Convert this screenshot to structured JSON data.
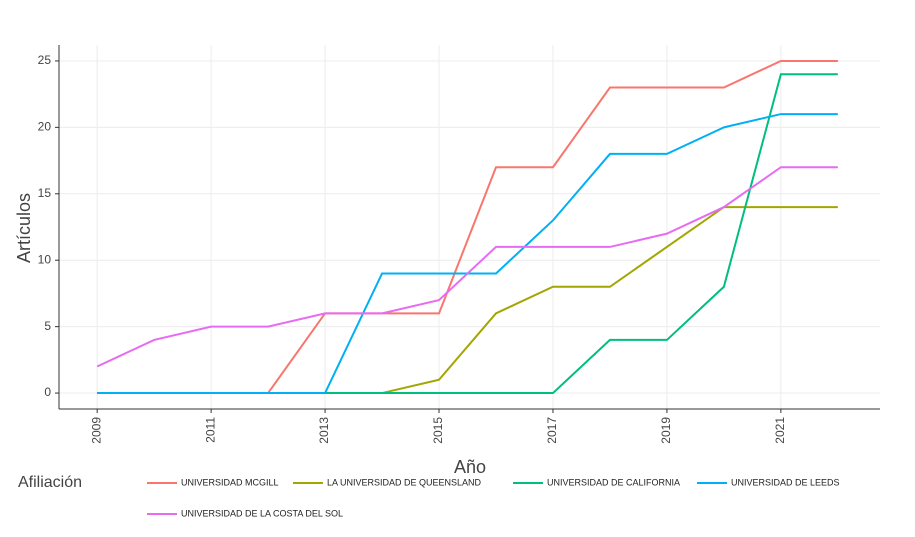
{
  "chart_data": {
    "type": "line",
    "x_label": "Año",
    "y_label": "Artículos",
    "legend_title": "Afiliación",
    "x": [
      2009,
      2010,
      2011,
      2012,
      2013,
      2014,
      2015,
      2016,
      2017,
      2018,
      2019,
      2020,
      2021,
      2022
    ],
    "series": [
      {
        "name": "UNIVERSIDAD MCGILL",
        "color": "#F8766D",
        "values": [
          0,
          0,
          0,
          0,
          6,
          6,
          6,
          17,
          17,
          23,
          23,
          23,
          25,
          25
        ]
      },
      {
        "name": "LA UNIVERSIDAD DE QUEENSLAND",
        "color": "#A3A500",
        "values": [
          0,
          0,
          0,
          0,
          0,
          0,
          1,
          6,
          8,
          8,
          11,
          14,
          14,
          14
        ]
      },
      {
        "name": "UNIVERSIDAD DE CALIFORNIA",
        "color": "#00BF7D",
        "values": [
          0,
          0,
          0,
          0,
          0,
          0,
          0,
          0,
          0,
          4,
          4,
          8,
          24,
          24
        ]
      },
      {
        "name": "UNIVERSIDAD DE LEEDS",
        "color": "#00B0F6",
        "values": [
          0,
          0,
          0,
          0,
          0,
          9,
          9,
          9,
          13,
          18,
          18,
          20,
          21,
          21
        ]
      },
      {
        "name": "UNIVERSIDAD DE LA COSTA DEL SOL",
        "color": "#E76BF3",
        "values": [
          2,
          4,
          5,
          5,
          6,
          6,
          7,
          11,
          11,
          11,
          12,
          14,
          17,
          17
        ]
      }
    ],
    "xlim": [
      2008.33,
      2022.74
    ],
    "xticks": [
      2009,
      2011,
      2013,
      2015,
      2017,
      2019,
      2021
    ],
    "ylim": [
      -1.2,
      26.2
    ],
    "yticks": [
      0,
      5,
      10,
      15,
      20,
      25
    ],
    "grid": true
  }
}
